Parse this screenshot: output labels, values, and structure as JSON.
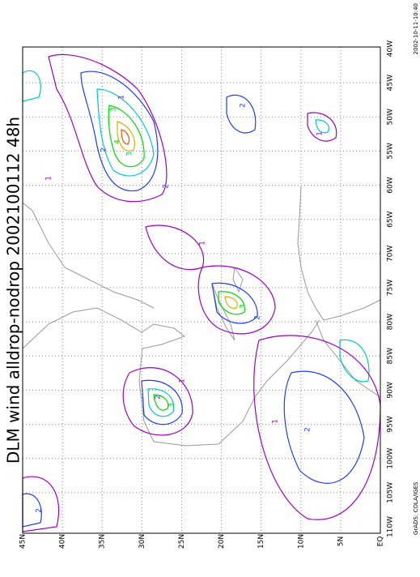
{
  "title": "DLM wind alldrop-nodrop 2002100112 48h",
  "longitude_labels": [
    "40W",
    "45W",
    "50W",
    "55W",
    "60W",
    "65W",
    "70W",
    "75W",
    "80W",
    "85W",
    "90W",
    "95W",
    "100W",
    "105W",
    "110W"
  ],
  "latitude_labels": [
    "EQ",
    "5N",
    "10N",
    "15N",
    "20N",
    "25N",
    "30N",
    "35N",
    "40N",
    "45N"
  ],
  "contour_labels": [
    "1",
    "2",
    "3",
    "4",
    "2",
    "3",
    "1",
    "2",
    "3",
    "2",
    "1",
    "2",
    "1",
    "1",
    "2",
    "3",
    "2",
    "1"
  ],
  "footer": {
    "credit": "GrADS: COLA/IGES",
    "timestamp": "2002-10-11-10:40"
  }
}
